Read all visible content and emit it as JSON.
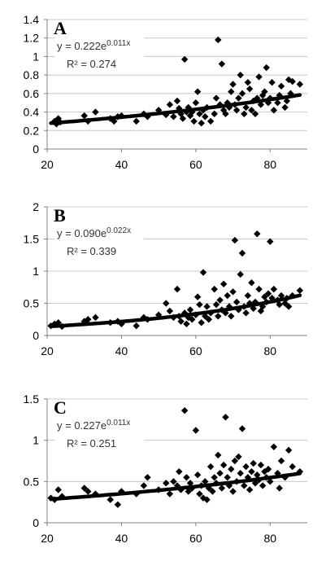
{
  "chart_data": [
    {
      "type": "scatter",
      "panel_label": "A",
      "equation": "y = 0.222e",
      "equation_exponent": "0.011x",
      "r2": "R² = 0.274",
      "trend": {
        "type": "exponential",
        "a": 0.222,
        "b": 0.011
      },
      "xlim": [
        20,
        90
      ],
      "ylim": [
        0,
        1.4
      ],
      "xticks": [
        20,
        40,
        60,
        80
      ],
      "yticks": [
        0,
        0.2,
        0.4,
        0.6,
        0.8,
        1,
        1.2,
        1.4
      ],
      "xtick_labels": [
        "20",
        "40",
        "60",
        "80"
      ],
      "ytick_labels": [
        "0",
        "0.2",
        "0.4",
        "0.6",
        "0.8",
        "1",
        "1.2",
        "1.4"
      ],
      "grid": true,
      "points": [
        [
          22,
          0.3
        ],
        [
          22.5,
          0.27
        ],
        [
          23,
          0.33
        ],
        [
          23.5,
          0.29
        ],
        [
          30,
          0.36
        ],
        [
          31,
          0.3
        ],
        [
          33,
          0.4
        ],
        [
          37,
          0.33
        ],
        [
          38,
          0.3
        ],
        [
          39,
          0.35
        ],
        [
          40,
          0.36
        ],
        [
          44,
          0.3
        ],
        [
          46,
          0.38
        ],
        [
          47,
          0.35
        ],
        [
          50,
          0.42
        ],
        [
          52,
          0.37
        ],
        [
          53,
          0.48
        ],
        [
          54,
          0.35
        ],
        [
          55,
          0.52
        ],
        [
          55.5,
          0.44
        ],
        [
          56,
          0.38
        ],
        [
          56.5,
          0.33
        ],
        [
          57,
          0.97
        ],
        [
          57.5,
          0.4
        ],
        [
          58,
          0.45
        ],
        [
          58.5,
          0.36
        ],
        [
          59,
          0.4
        ],
        [
          59.5,
          0.3
        ],
        [
          60,
          0.5
        ],
        [
          60.5,
          0.62
        ],
        [
          61,
          0.38
        ],
        [
          61.5,
          0.28
        ],
        [
          62,
          0.42
        ],
        [
          62.5,
          0.35
        ],
        [
          63,
          0.45
        ],
        [
          64,
          0.3
        ],
        [
          65,
          0.38
        ],
        [
          65.5,
          0.55
        ],
        [
          66,
          1.18
        ],
        [
          66.5,
          0.48
        ],
        [
          67,
          0.92
        ],
        [
          67.5,
          0.42
        ],
        [
          68,
          0.38
        ],
        [
          68.5,
          0.5
        ],
        [
          69,
          0.45
        ],
        [
          69.5,
          0.62
        ],
        [
          70,
          0.7
        ],
        [
          70.5,
          0.48
        ],
        [
          71,
          0.42
        ],
        [
          71.5,
          0.55
        ],
        [
          72,
          0.8
        ],
        [
          72.5,
          0.6
        ],
        [
          73,
          0.38
        ],
        [
          73.5,
          0.45
        ],
        [
          74,
          0.72
        ],
        [
          74.5,
          0.65
        ],
        [
          75,
          0.42
        ],
        [
          75.5,
          0.52
        ],
        [
          76,
          0.38
        ],
        [
          76.5,
          0.55
        ],
        [
          77,
          0.78
        ],
        [
          77.5,
          0.48
        ],
        [
          78,
          0.58
        ],
        [
          78.5,
          0.62
        ],
        [
          79,
          0.88
        ],
        [
          79.5,
          0.5
        ],
        [
          80,
          0.55
        ],
        [
          80.5,
          0.72
        ],
        [
          81,
          0.42
        ],
        [
          82,
          0.5
        ],
        [
          82.5,
          0.58
        ],
        [
          83,
          0.68
        ],
        [
          84,
          0.45
        ],
        [
          84.5,
          0.52
        ],
        [
          85,
          0.75
        ],
        [
          85.5,
          0.6
        ],
        [
          86,
          0.73
        ],
        [
          88,
          0.7
        ]
      ]
    },
    {
      "type": "scatter",
      "panel_label": "B",
      "equation": "y = 0.090e",
      "equation_exponent": "0.022x",
      "r2": "R² = 0.339",
      "trend": {
        "type": "exponential",
        "a": 0.09,
        "b": 0.022
      },
      "xlim": [
        20,
        90
      ],
      "ylim": [
        0,
        2
      ],
      "xticks": [
        20,
        40,
        60,
        80
      ],
      "yticks": [
        0,
        0.5,
        1,
        1.5,
        2
      ],
      "xtick_labels": [
        "20",
        "40",
        "60",
        "80"
      ],
      "ytick_labels": [
        "0",
        "0.5",
        "1",
        "1.5",
        "2"
      ],
      "grid": true,
      "points": [
        [
          21,
          0.15
        ],
        [
          22,
          0.18
        ],
        [
          23,
          0.2
        ],
        [
          24,
          0.14
        ],
        [
          30,
          0.22
        ],
        [
          31,
          0.25
        ],
        [
          33,
          0.28
        ],
        [
          37,
          0.2
        ],
        [
          39,
          0.22
        ],
        [
          40,
          0.18
        ],
        [
          44,
          0.15
        ],
        [
          46,
          0.28
        ],
        [
          47,
          0.25
        ],
        [
          50,
          0.32
        ],
        [
          52,
          0.5
        ],
        [
          53,
          0.38
        ],
        [
          54,
          0.28
        ],
        [
          55,
          0.72
        ],
        [
          55.5,
          0.3
        ],
        [
          56,
          0.22
        ],
        [
          57,
          0.35
        ],
        [
          57.5,
          0.18
        ],
        [
          58,
          0.28
        ],
        [
          58.5,
          0.4
        ],
        [
          59,
          0.25
        ],
        [
          60,
          0.32
        ],
        [
          60.5,
          0.6
        ],
        [
          61,
          0.48
        ],
        [
          61.5,
          0.2
        ],
        [
          62,
          0.98
        ],
        [
          62.5,
          0.3
        ],
        [
          63,
          0.45
        ],
        [
          63.5,
          0.25
        ],
        [
          64,
          0.35
        ],
        [
          65,
          0.72
        ],
        [
          65.5,
          0.48
        ],
        [
          66,
          0.3
        ],
        [
          66.5,
          0.55
        ],
        [
          67,
          0.4
        ],
        [
          67.5,
          0.8
        ],
        [
          68,
          0.35
        ],
        [
          68.5,
          0.62
        ],
        [
          69,
          0.45
        ],
        [
          69.5,
          0.3
        ],
        [
          70,
          0.68
        ],
        [
          70.5,
          1.48
        ],
        [
          71,
          0.52
        ],
        [
          71.5,
          0.4
        ],
        [
          72,
          0.95
        ],
        [
          72.5,
          1.28
        ],
        [
          73,
          0.45
        ],
        [
          73.5,
          0.35
        ],
        [
          74,
          0.62
        ],
        [
          74.5,
          0.5
        ],
        [
          75,
          0.82
        ],
        [
          75.5,
          0.42
        ],
        [
          76,
          0.52
        ],
        [
          76.5,
          1.58
        ],
        [
          77,
          0.72
        ],
        [
          77.5,
          0.38
        ],
        [
          78,
          0.45
        ],
        [
          78.5,
          0.6
        ],
        [
          79,
          0.52
        ],
        [
          79.5,
          0.65
        ],
        [
          80,
          1.46
        ],
        [
          80.5,
          0.58
        ],
        [
          81,
          0.72
        ],
        [
          82,
          0.55
        ],
        [
          82.5,
          0.48
        ],
        [
          83,
          0.62
        ],
        [
          84,
          0.5
        ],
        [
          84.5,
          0.58
        ],
        [
          85,
          0.45
        ],
        [
          86,
          0.62
        ],
        [
          88,
          0.7
        ]
      ]
    },
    {
      "type": "scatter",
      "panel_label": "C",
      "equation": "y = 0.227e",
      "equation_exponent": "0.011x",
      "r2": "R² = 0.251",
      "trend": {
        "type": "exponential",
        "a": 0.227,
        "b": 0.011
      },
      "xlim": [
        20,
        90
      ],
      "ylim": [
        0,
        1.5
      ],
      "xticks": [
        20,
        40,
        60,
        80
      ],
      "yticks": [
        0,
        0.5,
        1,
        1.5
      ],
      "xtick_labels": [
        "20",
        "40",
        "60",
        "80"
      ],
      "ytick_labels": [
        "0",
        "0.5",
        "1",
        "1.5"
      ],
      "grid": true,
      "points": [
        [
          21,
          0.3
        ],
        [
          22,
          0.28
        ],
        [
          23,
          0.4
        ],
        [
          24,
          0.32
        ],
        [
          30,
          0.42
        ],
        [
          31,
          0.38
        ],
        [
          33,
          0.35
        ],
        [
          37,
          0.28
        ],
        [
          39,
          0.22
        ],
        [
          40,
          0.38
        ],
        [
          44,
          0.35
        ],
        [
          46,
          0.45
        ],
        [
          47,
          0.55
        ],
        [
          50,
          0.4
        ],
        [
          52,
          0.48
        ],
        [
          53,
          0.35
        ],
        [
          54,
          0.5
        ],
        [
          55,
          0.45
        ],
        [
          55.5,
          0.62
        ],
        [
          56,
          0.4
        ],
        [
          57,
          1.36
        ],
        [
          57.5,
          0.55
        ],
        [
          58,
          0.38
        ],
        [
          58.5,
          0.48
        ],
        [
          59,
          0.42
        ],
        [
          60,
          1.12
        ],
        [
          60.5,
          0.58
        ],
        [
          61,
          0.35
        ],
        [
          61.5,
          0.45
        ],
        [
          62,
          0.3
        ],
        [
          62.5,
          0.5
        ],
        [
          63,
          0.28
        ],
        [
          63.5,
          0.42
        ],
        [
          64,
          0.68
        ],
        [
          64.5,
          0.38
        ],
        [
          65,
          0.55
        ],
        [
          65.5,
          0.48
        ],
        [
          66,
          0.82
        ],
        [
          66.5,
          0.6
        ],
        [
          67,
          0.42
        ],
        [
          67.5,
          0.7
        ],
        [
          68,
          1.28
        ],
        [
          68.5,
          0.55
        ],
        [
          69,
          0.45
        ],
        [
          69.5,
          0.65
        ],
        [
          70,
          0.38
        ],
        [
          70.5,
          0.75
        ],
        [
          71,
          0.5
        ],
        [
          71.5,
          0.8
        ],
        [
          72,
          0.6
        ],
        [
          72.5,
          1.14
        ],
        [
          73,
          0.45
        ],
        [
          73.5,
          0.68
        ],
        [
          74,
          0.55
        ],
        [
          74.5,
          0.4
        ],
        [
          75,
          0.62
        ],
        [
          75.5,
          0.72
        ],
        [
          76,
          0.48
        ],
        [
          76.5,
          0.58
        ],
        [
          77,
          0.52
        ],
        [
          77.5,
          0.7
        ],
        [
          78,
          0.45
        ],
        [
          78.5,
          0.62
        ],
        [
          79,
          0.55
        ],
        [
          79.5,
          0.65
        ],
        [
          80,
          0.5
        ],
        [
          81,
          0.92
        ],
        [
          82,
          0.6
        ],
        [
          82.5,
          0.42
        ],
        [
          83,
          0.75
        ],
        [
          84,
          0.55
        ],
        [
          85,
          0.88
        ],
        [
          86,
          0.68
        ],
        [
          88,
          0.62
        ]
      ]
    }
  ]
}
